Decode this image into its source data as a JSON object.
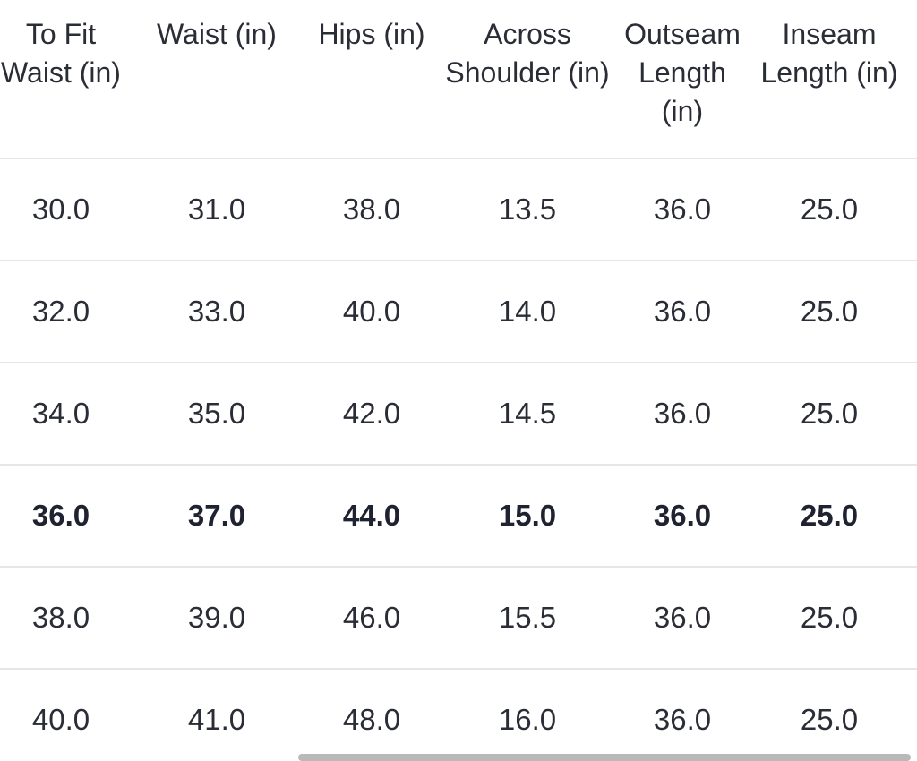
{
  "size_chart": {
    "columns": [
      "To Fit Waist (in)",
      "Waist (in)",
      "Hips (in)",
      "Across Shoulder (in)",
      "Outseam Length (in)",
      "Inseam Length (in)"
    ],
    "rows": [
      [
        "30.0",
        "31.0",
        "38.0",
        "13.5",
        "36.0",
        "25.0"
      ],
      [
        "32.0",
        "33.0",
        "40.0",
        "14.0",
        "36.0",
        "25.0"
      ],
      [
        "34.0",
        "35.0",
        "42.0",
        "14.5",
        "36.0",
        "25.0"
      ],
      [
        "36.0",
        "37.0",
        "44.0",
        "15.0",
        "36.0",
        "25.0"
      ],
      [
        "38.0",
        "39.0",
        "46.0",
        "15.5",
        "36.0",
        "25.0"
      ],
      [
        "40.0",
        "41.0",
        "48.0",
        "16.0",
        "36.0",
        "25.0"
      ]
    ],
    "highlighted_row": 3
  },
  "colors": {
    "text": "#2a2d36",
    "divider": "#e6e6e6",
    "scrollbar": "#b9b9b9"
  }
}
